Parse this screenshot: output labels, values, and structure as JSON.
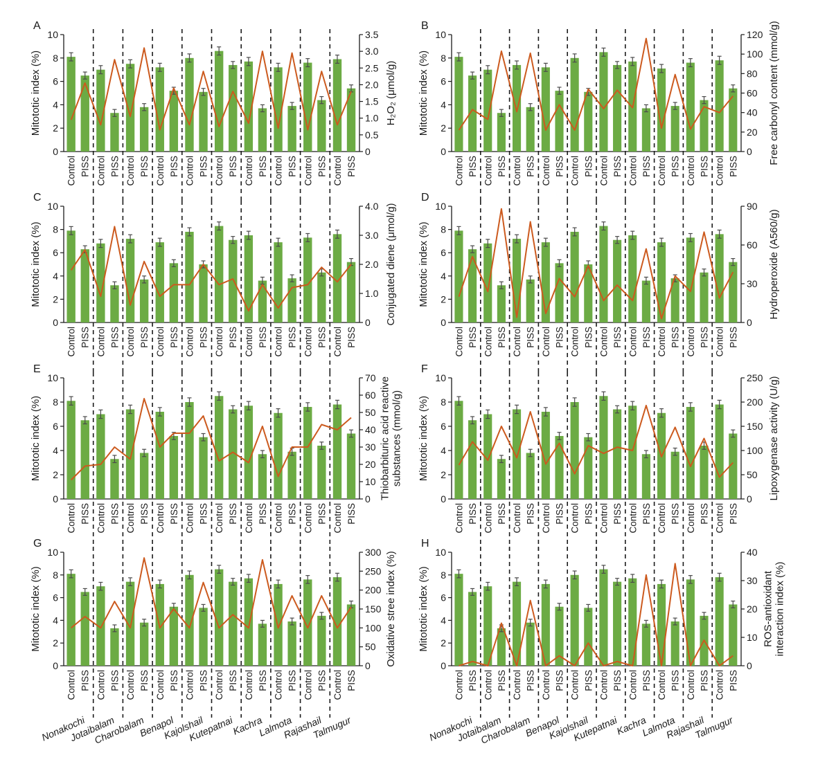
{
  "figure": {
    "variety_labels": [
      "Nonakochi",
      "Jotaibalam",
      "Charobalam",
      "Benapol",
      "Kajolshail",
      "Kutepatnai",
      "Kachra",
      "Lalmota",
      "Rajashail",
      "Talmugur"
    ],
    "bar_categories": [
      "Control",
      "PISS"
    ],
    "left_axis": {
      "label": "Mitototic index (%)",
      "ticks": [
        0,
        2,
        4,
        6,
        8,
        10
      ],
      "ylim": [
        0,
        10
      ]
    },
    "colors": {
      "bar": "#6cab44",
      "line": "#cc5a1e",
      "error": "#4a4a4a",
      "axis": "#1a1a1a",
      "divider": "#1a1a1a"
    },
    "common_mitotic_index": {
      "control": [
        8.1,
        7.0,
        7.4,
        7.2,
        8.0,
        8.5,
        7.7,
        7.2,
        7.6,
        7.8
      ],
      "piss": [
        6.5,
        3.3,
        3.8,
        5.2,
        5.1,
        7.4,
        3.7,
        3.9,
        4.4,
        5.4
      ]
    },
    "common_error": {
      "control": [
        0.35,
        0.35,
        0.35,
        0.35,
        0.35,
        0.35,
        0.35,
        0.35,
        0.35,
        0.35
      ],
      "piss": [
        0.3,
        0.3,
        0.3,
        0.3,
        0.3,
        0.3,
        0.3,
        0.3,
        0.3,
        0.3
      ]
    }
  },
  "chart_data": [
    {
      "panel": "A",
      "type": "bar",
      "categories": [
        "Control",
        "PISS"
      ],
      "right_label": "H₂O₂ (μmol/g)",
      "right_ticks": [
        "0",
        "0.5",
        "1.0",
        "1.5",
        "2.0",
        "2.5",
        "3.0",
        "3.5"
      ],
      "right_ylim": [
        0,
        3.5
      ],
      "mitotic_index": {
        "control": [
          8.1,
          7.0,
          7.5,
          7.2,
          8.0,
          8.6,
          7.7,
          7.2,
          7.6,
          7.9
        ],
        "piss": [
          6.5,
          3.3,
          3.8,
          5.2,
          5.1,
          7.4,
          3.7,
          3.9,
          4.4,
          5.4
        ]
      },
      "line_values": {
        "control": [
          0.95,
          0.8,
          1.05,
          0.65,
          0.8,
          0.75,
          0.85,
          0.7,
          0.65,
          0.8
        ],
        "piss": [
          2.05,
          2.75,
          3.1,
          1.9,
          2.4,
          1.8,
          3.0,
          2.95,
          2.4,
          1.8
        ]
      }
    },
    {
      "panel": "B",
      "type": "bar",
      "categories": [
        "Control",
        "PISS"
      ],
      "right_label": "Free carbonyl content (mmol/g)",
      "right_ticks": [
        "0",
        "20",
        "40",
        "60",
        "80",
        "100",
        "120"
      ],
      "right_ylim": [
        0,
        120
      ],
      "mitotic_index": {
        "control": [
          8.1,
          7.0,
          7.4,
          7.2,
          8.0,
          8.5,
          7.7,
          7.1,
          7.6,
          7.8
        ],
        "piss": [
          6.5,
          3.3,
          3.8,
          5.2,
          5.1,
          7.4,
          3.7,
          3.9,
          4.4,
          5.4
        ]
      },
      "line_values": {
        "control": [
          22,
          33,
          41,
          22,
          22,
          44,
          45,
          24,
          23,
          40
        ],
        "piss": [
          43,
          103,
          101,
          48,
          64,
          63,
          116,
          79,
          46,
          57
        ]
      }
    },
    {
      "panel": "C",
      "type": "bar",
      "categories": [
        "Control",
        "PISS"
      ],
      "right_label": "Conjugated diene (μmol/g)",
      "right_ticks": [
        "0",
        "1.0",
        "2.0",
        "3.0",
        "4.0"
      ],
      "right_ylim": [
        0,
        4
      ],
      "mitotic_index": {
        "control": [
          7.9,
          6.8,
          7.2,
          6.9,
          7.8,
          8.3,
          7.5,
          6.9,
          7.3,
          7.6
        ],
        "piss": [
          6.3,
          3.2,
          3.7,
          5.1,
          5.0,
          7.1,
          3.6,
          3.8,
          4.3,
          5.2
        ]
      },
      "line_values": {
        "control": [
          1.8,
          0.9,
          0.6,
          0.9,
          1.3,
          1.3,
          0.4,
          0.5,
          1.3,
          1.4
        ],
        "piss": [
          2.5,
          3.3,
          2.1,
          1.3,
          2.0,
          1.5,
          1.3,
          1.2,
          1.9,
          2.0
        ]
      }
    },
    {
      "panel": "D",
      "type": "bar",
      "categories": [
        "Control",
        "PISS"
      ],
      "right_label": "Hydroperoxide (A560/g)",
      "right_ticks": [
        "0",
        "30",
        "60",
        "90"
      ],
      "right_ylim": [
        0,
        90
      ],
      "mitotic_index": {
        "control": [
          7.9,
          6.8,
          7.2,
          6.9,
          7.8,
          8.3,
          7.5,
          6.9,
          7.3,
          7.6
        ],
        "piss": [
          6.3,
          3.2,
          3.7,
          5.1,
          5.0,
          7.1,
          3.6,
          3.8,
          4.3,
          5.2
        ]
      },
      "line_values": {
        "control": [
          20,
          24,
          4,
          7,
          20,
          17,
          17,
          3,
          24,
          19
        ],
        "piss": [
          51,
          88,
          78,
          34,
          44,
          29,
          57,
          36,
          70,
          39
        ]
      }
    },
    {
      "panel": "E",
      "type": "bar",
      "categories": [
        "Control",
        "PISS"
      ],
      "right_label": "Thiobarbituric acid reactive substances (mmol/g)",
      "right_label_lines": [
        "Thiobarbituric acid reactive",
        "substances (mmol/g)"
      ],
      "right_ticks": [
        "0",
        "10",
        "20",
        "30",
        "40",
        "50",
        "60",
        "70"
      ],
      "right_ylim": [
        0,
        70
      ],
      "mitotic_index": {
        "control": [
          8.1,
          7.0,
          7.4,
          7.2,
          8.0,
          8.5,
          7.7,
          7.1,
          7.6,
          7.8
        ],
        "piss": [
          6.5,
          3.3,
          3.8,
          5.2,
          5.1,
          7.4,
          3.7,
          3.9,
          4.4,
          5.4
        ]
      },
      "line_values": {
        "control": [
          11,
          20,
          23,
          30,
          38,
          22,
          21,
          13,
          30,
          40
        ],
        "piss": [
          19,
          30,
          58,
          38,
          48,
          27,
          42,
          30,
          43,
          47
        ]
      }
    },
    {
      "panel": "F",
      "type": "bar",
      "categories": [
        "Control",
        "PISS"
      ],
      "right_label": "Lipoxygenase activity (U/g)",
      "right_ticks": [
        "0",
        "50",
        "100",
        "150",
        "200",
        "250"
      ],
      "right_ylim": [
        0,
        250
      ],
      "mitotic_index": {
        "control": [
          8.1,
          7.0,
          7.4,
          7.2,
          8.0,
          8.5,
          7.7,
          7.1,
          7.6,
          7.8
        ],
        "piss": [
          6.5,
          3.3,
          3.8,
          5.2,
          5.1,
          7.4,
          3.7,
          3.9,
          4.4,
          5.4
        ]
      },
      "line_values": {
        "control": [
          70,
          80,
          85,
          72,
          52,
          94,
          100,
          87,
          67,
          45
        ],
        "piss": [
          118,
          150,
          180,
          115,
          110,
          107,
          193,
          148,
          125,
          75
        ]
      }
    },
    {
      "panel": "G",
      "type": "bar",
      "categories": [
        "Control",
        "PISS"
      ],
      "right_label": "Oxidative stree index (%)",
      "right_ticks": [
        "0",
        "50",
        "100",
        "150",
        "200",
        "250",
        "300"
      ],
      "right_ylim": [
        0,
        300
      ],
      "mitotic_index": {
        "control": [
          8.1,
          7.0,
          7.4,
          7.2,
          8.0,
          8.5,
          7.7,
          7.2,
          7.6,
          7.8
        ],
        "piss": [
          6.5,
          3.3,
          3.8,
          5.2,
          5.1,
          7.4,
          3.7,
          3.9,
          4.4,
          5.4
        ]
      },
      "line_values": {
        "control": [
          100,
          100,
          100,
          100,
          100,
          100,
          100,
          100,
          100,
          100
        ],
        "piss": [
          130,
          170,
          285,
          150,
          220,
          135,
          280,
          185,
          185,
          155
        ]
      }
    },
    {
      "panel": "H",
      "type": "bar",
      "categories": [
        "Control",
        "PISS"
      ],
      "right_label": "ROS-antioxidant interaction index (%)",
      "right_label_lines": [
        "ROS-antioxidant",
        "interaction index (%)"
      ],
      "right_ticks": [
        "0",
        "10",
        "20",
        "30",
        "40"
      ],
      "right_ylim": [
        0,
        40
      ],
      "mitotic_index": {
        "control": [
          8.1,
          7.0,
          7.4,
          7.2,
          8.0,
          8.5,
          7.7,
          7.2,
          7.6,
          7.8
        ],
        "piss": [
          6.5,
          3.3,
          3.8,
          5.2,
          5.1,
          7.4,
          3.7,
          3.9,
          4.4,
          5.4
        ]
      },
      "line_values": {
        "control": [
          0,
          0,
          0,
          0,
          0,
          0,
          0,
          0,
          0,
          0
        ],
        "piss": [
          1.5,
          15,
          23,
          3.5,
          8,
          1.5,
          32,
          36,
          9,
          3.5
        ]
      }
    }
  ]
}
